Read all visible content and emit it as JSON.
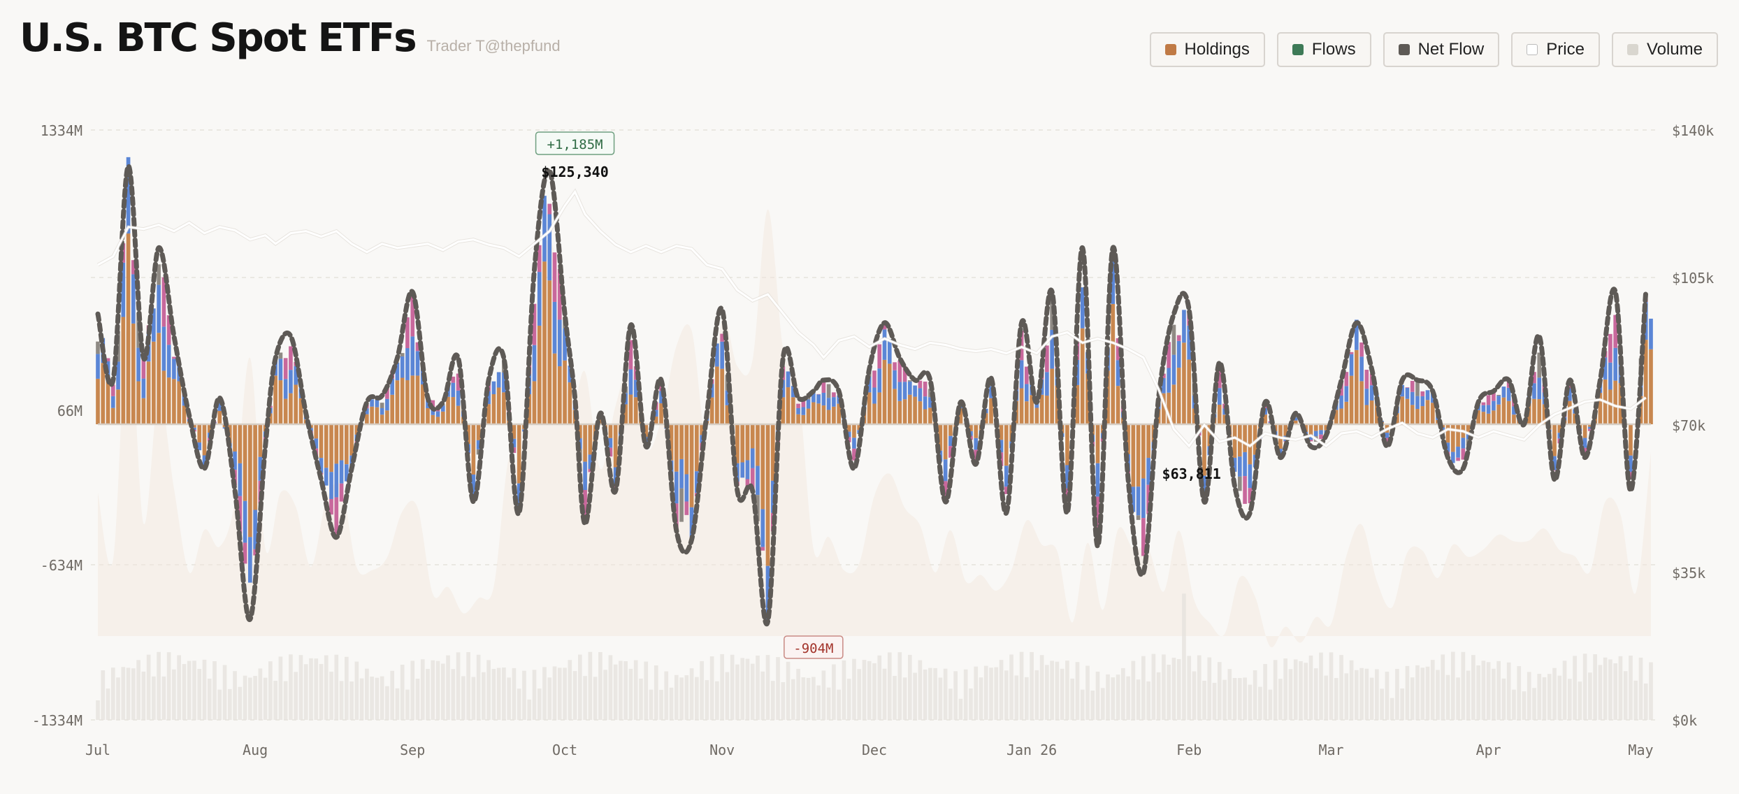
{
  "header": {
    "title": "U.S. BTC Spot ETFs",
    "subtitle": "Trader T@thepfund"
  },
  "legend": [
    {
      "label": "Holdings",
      "color": "#c07a45",
      "icon": "holdings-swatch"
    },
    {
      "label": "Flows",
      "color": "#3e7a57",
      "icon": "flows-swatch"
    },
    {
      "label": "Net Flow",
      "color": "#5e5a56",
      "icon": "net-flow-swatch"
    },
    {
      "label": "Price",
      "color": "#ffffff",
      "icon": "price-swatch"
    },
    {
      "label": "Volume",
      "color": "#d9d6cf",
      "icon": "volume-swatch"
    }
  ],
  "colors": {
    "holdings": "#c8874f",
    "blue": "#5b86d6",
    "pink": "#c8689c",
    "gray": "#8f8a84",
    "net_flow": "#5e5a56",
    "price": "#ffffff",
    "volume": "#e4e1dc",
    "area": "#f1e7dc",
    "zero_line": "#d6cdc3"
  },
  "chart_data": {
    "type": "bar",
    "y_left_ticks": [
      "1334M",
      "66M",
      "-634M",
      "-1334M"
    ],
    "y_right_ticks": [
      "$140k",
      "$105k",
      "$70k",
      "$35k",
      "$0k"
    ],
    "ylim_flow_musd": [
      -1334,
      1334
    ],
    "ylim_price_usd": [
      0,
      140000
    ],
    "x_tick_labels": [
      "Jul",
      "Aug",
      "Sep",
      "Oct",
      "Nov",
      "Dec",
      "Jan 26",
      "Feb",
      "Mar",
      "Apr",
      "May"
    ],
    "x_range_days": [
      0,
      306
    ],
    "x_tick_days": [
      0,
      31,
      62,
      92,
      123,
      153,
      184,
      215,
      243,
      274,
      304
    ],
    "annotations": {
      "max_flow_label": "+1,185M",
      "min_flow_label": "-904M",
      "max_price_label": "$125,340",
      "min_price_label": "$63,811"
    },
    "flows_anchor_days": [
      0,
      3,
      6,
      9,
      12,
      15,
      18,
      21,
      24,
      27,
      30,
      33,
      35,
      38,
      41,
      44,
      47,
      50,
      53,
      56,
      59,
      62,
      65,
      68,
      71,
      74,
      77,
      80,
      83,
      86,
      89,
      92,
      94,
      96,
      99,
      102,
      105,
      108,
      111,
      114,
      117,
      120,
      123,
      126,
      129,
      132,
      135,
      138,
      141,
      143,
      146,
      149,
      152,
      155,
      158,
      161,
      164,
      167,
      170,
      173,
      176,
      179,
      182,
      185,
      188,
      191,
      194,
      197,
      200,
      203,
      206,
      209,
      212,
      215,
      218,
      221,
      224,
      227,
      230,
      233,
      236,
      239,
      242,
      245,
      248,
      251,
      254,
      257,
      260,
      263,
      266,
      269,
      272,
      275,
      278,
      281,
      284,
      287,
      290,
      293,
      296,
      299,
      302,
      305
    ],
    "flows_anchor_musd": [
      500,
      200,
      1170,
      300,
      800,
      400,
      40,
      -200,
      120,
      -300,
      -880,
      -100,
      300,
      400,
      50,
      -250,
      -510,
      -200,
      100,
      130,
      300,
      600,
      120,
      100,
      300,
      -350,
      200,
      300,
      -400,
      700,
      1150,
      500,
      120,
      -450,
      50,
      -300,
      450,
      -100,
      200,
      -480,
      -520,
      50,
      520,
      -300,
      -300,
      -890,
      300,
      120,
      150,
      200,
      150,
      -200,
      250,
      460,
      300,
      200,
      200,
      -350,
      100,
      -180,
      210,
      -400,
      460,
      100,
      600,
      -400,
      800,
      -550,
      800,
      -250,
      -670,
      120,
      500,
      520,
      -350,
      280,
      -280,
      -400,
      100,
      -150,
      50,
      -100,
      -50,
      200,
      460,
      250,
      -100,
      200,
      200,
      150,
      -150,
      -200,
      100,
      150,
      200,
      0,
      400,
      -250,
      200,
      -150,
      200,
      600,
      -300,
      600
    ],
    "price_anchor_days": [
      0,
      3,
      6,
      9,
      12,
      15,
      18,
      21,
      24,
      27,
      30,
      33,
      35,
      38,
      41,
      44,
      47,
      50,
      53,
      56,
      59,
      62,
      65,
      68,
      71,
      74,
      77,
      80,
      83,
      86,
      89,
      92,
      94,
      96,
      99,
      102,
      105,
      108,
      111,
      114,
      117,
      120,
      123,
      126,
      129,
      132,
      135,
      138,
      141,
      143,
      146,
      149,
      152,
      155,
      158,
      161,
      164,
      167,
      170,
      173,
      176,
      179,
      182,
      185,
      188,
      191,
      194,
      197,
      200,
      203,
      206,
      209,
      212,
      215,
      218,
      221,
      224,
      227,
      230,
      233,
      236,
      239,
      242,
      245,
      248,
      251,
      254,
      257,
      260,
      263,
      266,
      269,
      272,
      275,
      278,
      281,
      284,
      287,
      290,
      293,
      296,
      299,
      302,
      305
    ],
    "price_anchor_usd": [
      108000,
      110000,
      117000,
      116500,
      117500,
      116000,
      118000,
      115500,
      117000,
      116200,
      114000,
      115000,
      113000,
      115500,
      116000,
      114700,
      116000,
      113000,
      111000,
      113000,
      112000,
      112500,
      113000,
      111500,
      113500,
      114000,
      112800,
      112000,
      110000,
      113000,
      116000,
      122000,
      125340,
      120000,
      116000,
      112800,
      111000,
      112500,
      111000,
      112500,
      111800,
      108000,
      107000,
      102000,
      99500,
      101000,
      96500,
      92000,
      89000,
      86000,
      90000,
      91000,
      88500,
      90500,
      89000,
      88000,
      89500,
      89000,
      88000,
      87500,
      88000,
      87000,
      88500,
      87000,
      91000,
      92000,
      89500,
      90500,
      89500,
      88000,
      86000,
      78500,
      69000,
      65000,
      70000,
      66000,
      67000,
      65000,
      68000,
      67000,
      66500,
      67500,
      65000,
      68000,
      68500,
      67000,
      69000,
      70500,
      68000,
      67000,
      69000,
      68500,
      67000,
      68500,
      67500,
      66500,
      70000,
      72500,
      74000,
      75500,
      76000,
      74500,
      73800,
      76500
    ],
    "annotation_points": {
      "max_flow": {
        "day": 94,
        "musd": 1185
      },
      "min_flow": {
        "day": 141,
        "musd": -904
      },
      "min_price": {
        "day": 213,
        "usd": 63811
      }
    }
  }
}
